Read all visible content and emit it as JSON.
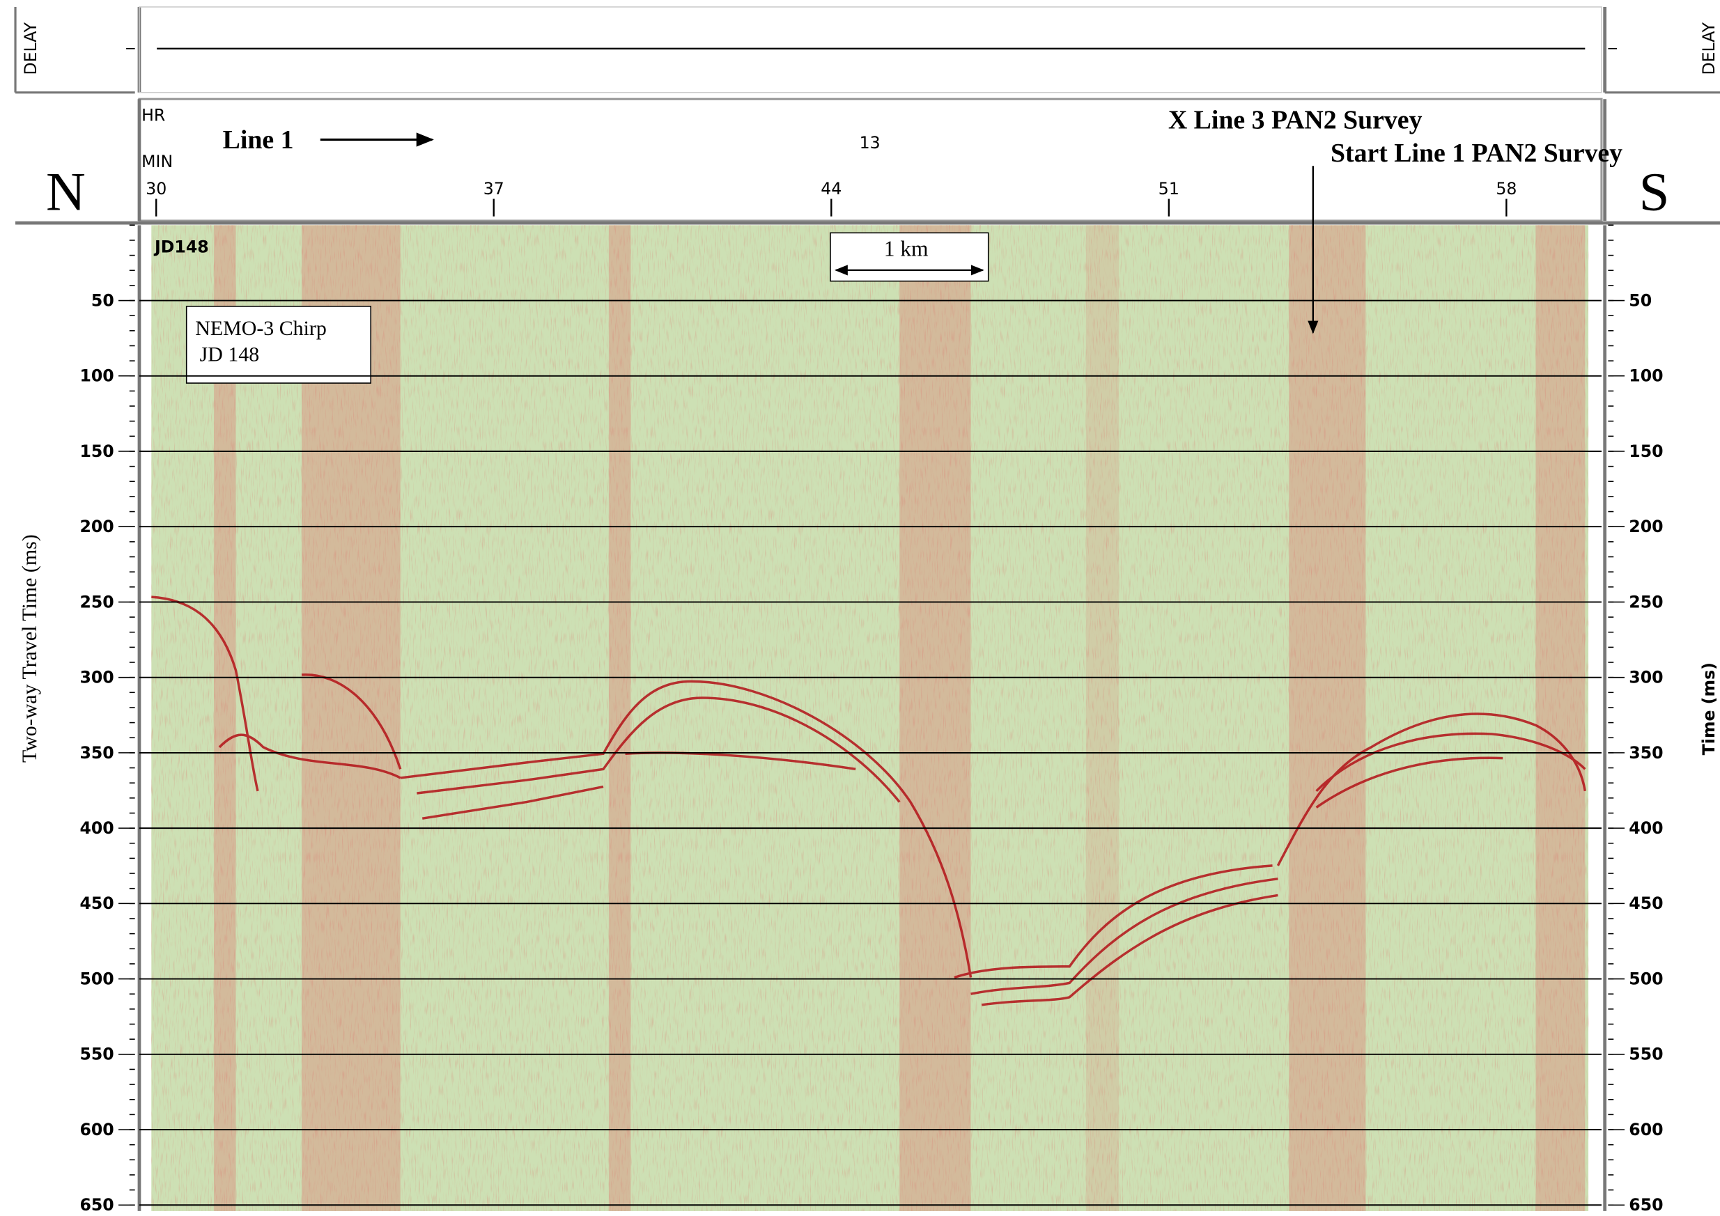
{
  "delay_label": "DELAY",
  "left_label": "N",
  "right_label": "S",
  "hr_label": "HR",
  "min_label": "MIN",
  "hour_label": "13",
  "line_label": "Line 1",
  "annotations": [
    "X Line 3 PAN2 Survey",
    "Start Line 1 PAN2 Survey"
  ],
  "record_label": "JD148",
  "scale_bar": "1 km",
  "info_box": [
    "NEMO-3 Chirp",
    "JD 148"
  ],
  "x_axis": {
    "lim": [
      29.9,
      59.7
    ],
    "ticks": [
      30,
      37,
      44,
      51,
      58
    ]
  },
  "y_axis": {
    "label": "Two-way Travel Time (ms)",
    "right_label": "Time (ms)",
    "lim": [
      0,
      654
    ],
    "ticks": [
      50,
      100,
      150,
      200,
      250,
      300,
      350,
      400,
      450,
      500,
      550,
      600,
      650
    ]
  }
}
